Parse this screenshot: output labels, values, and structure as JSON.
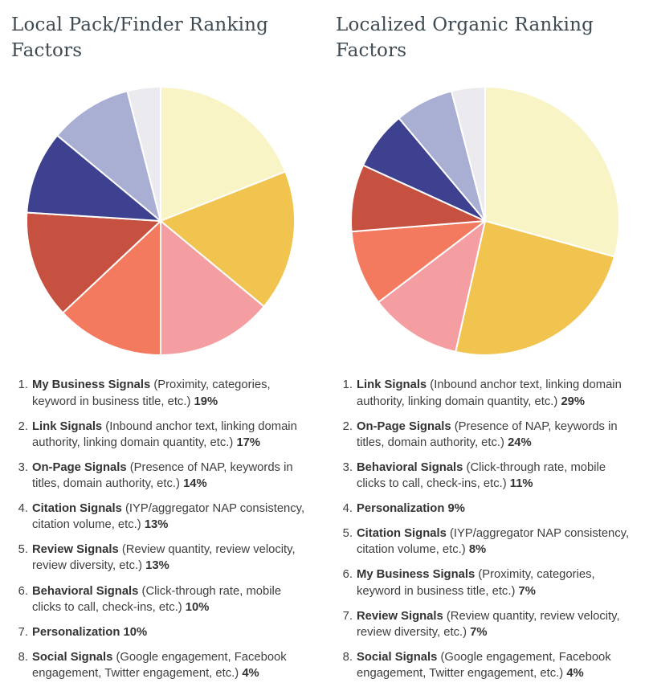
{
  "page": {
    "background": "#ffffff",
    "title_color": "#3e4a52",
    "legend_text_color": "#3e3e3e"
  },
  "chart_data": [
    {
      "type": "pie",
      "title": "Local Pack/Finder Ranking Factors",
      "legend_position": "below",
      "start_angle_deg": 0,
      "direction": "clockwise",
      "slice_border_color": "#ffffff",
      "slices": [
        {
          "rank": "1.",
          "label": "My Business Signals",
          "desc": "(Proximity, categories, keyword in business title, etc.)",
          "value": 19,
          "pct_label": "19%",
          "color": "#F9F4C5"
        },
        {
          "rank": "2.",
          "label": "Link Signals",
          "desc": "(Inbound anchor text, linking domain authority, linking domain quantity, etc.)",
          "value": 17,
          "pct_label": "17%",
          "color": "#F1C34F"
        },
        {
          "rank": "3.",
          "label": "On-Page Signals",
          "desc": "(Presence of NAP, keywords in titles, domain authority, etc.)",
          "value": 14,
          "pct_label": "14%",
          "color": "#F59EA1"
        },
        {
          "rank": "4.",
          "label": "Citation Signals",
          "desc": "(IYP/aggregator NAP consistency, citation volume, etc.)",
          "value": 13,
          "pct_label": "13%",
          "color": "#F37A5E"
        },
        {
          "rank": "5.",
          "label": "Review Signals",
          "desc": "(Review quantity, review velocity, review diversity, etc.)",
          "value": 13,
          "pct_label": "13%",
          "color": "#C65140"
        },
        {
          "rank": "6.",
          "label": "Behavioral Signals",
          "desc": "(Click-through rate, mobile clicks to call, check-ins, etc.)",
          "value": 10,
          "pct_label": "10%",
          "color": "#3D4190"
        },
        {
          "rank": "7.",
          "label": "Personalization",
          "desc": "",
          "value": 10,
          "pct_label": "10%",
          "color": "#A9AED3"
        },
        {
          "rank": "8.",
          "label": "Social Signals",
          "desc": "(Google engagement, Facebook engagement, Twitter engagement, etc.)",
          "value": 4,
          "pct_label": "4%",
          "color": "#EAEAEF"
        }
      ]
    },
    {
      "type": "pie",
      "title": "Localized Organic Ranking Factors",
      "legend_position": "below",
      "start_angle_deg": 0,
      "direction": "clockwise",
      "slice_border_color": "#ffffff",
      "slices": [
        {
          "rank": "1.",
          "label": "Link Signals",
          "desc": "(Inbound anchor text, linking domain authority, linking domain quantity, etc.)",
          "value": 29,
          "pct_label": "29%",
          "color": "#F9F4C5"
        },
        {
          "rank": "2.",
          "label": "On-Page Signals",
          "desc": "(Presence of NAP, keywords in titles, domain authority, etc.)",
          "value": 24,
          "pct_label": "24%",
          "color": "#F1C34F"
        },
        {
          "rank": "3.",
          "label": "Behavioral Signals",
          "desc": "(Click-through rate, mobile clicks to call, check-ins, etc.)",
          "value": 11,
          "pct_label": "11%",
          "color": "#F59EA1"
        },
        {
          "rank": "4.",
          "label": "Personalization",
          "desc": "",
          "value": 9,
          "pct_label": "9%",
          "color": "#F37A5E"
        },
        {
          "rank": "5.",
          "label": "Citation Signals",
          "desc": "(IYP/aggregator NAP consistency, citation volume, etc.)",
          "value": 8,
          "pct_label": "8%",
          "color": "#C65140"
        },
        {
          "rank": "6.",
          "label": "My Business Signals",
          "desc": "(Proximity, categories, keyword in business title, etc.)",
          "value": 7,
          "pct_label": "7%",
          "color": "#3D4190"
        },
        {
          "rank": "7.",
          "label": "Review Signals",
          "desc": "(Review quantity, review velocity, review diversity, etc.)",
          "value": 7,
          "pct_label": "7%",
          "color": "#A9AED3"
        },
        {
          "rank": "8.",
          "label": "Social Signals",
          "desc": "(Google engagement, Facebook engagement, Twitter engagement, etc.)",
          "value": 4,
          "pct_label": "4%",
          "color": "#EAEAEF"
        }
      ]
    }
  ]
}
